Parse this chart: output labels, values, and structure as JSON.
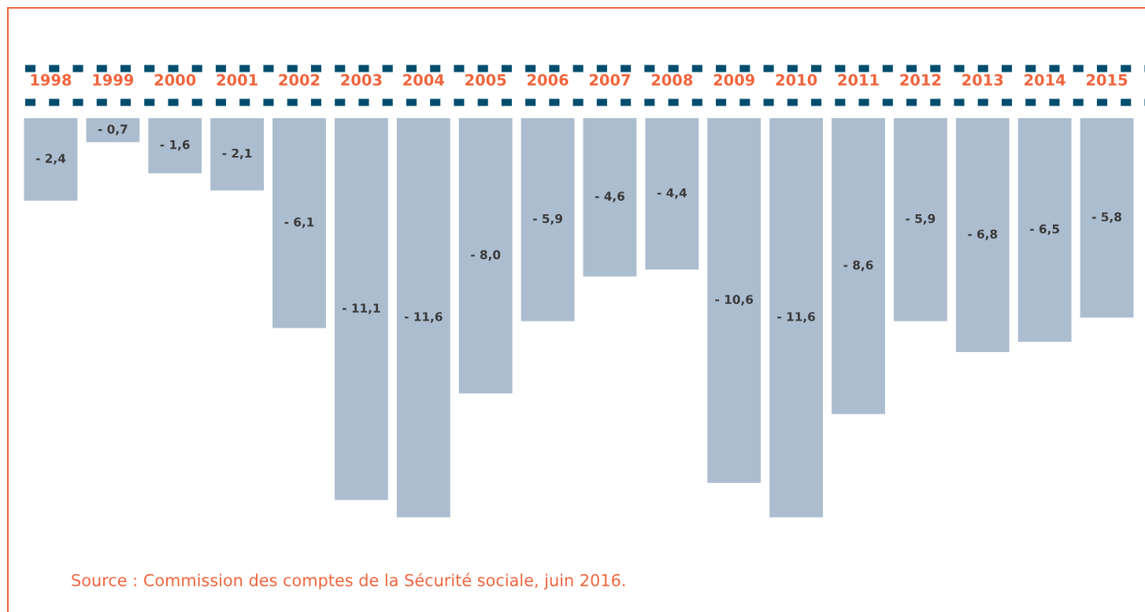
{
  "chart_data": {
    "type": "bar",
    "categories": [
      "1998",
      "1999",
      "2000",
      "2001",
      "2002",
      "2003",
      "2004",
      "2005",
      "2006",
      "2007",
      "2008",
      "2009",
      "2010",
      "2011",
      "2012",
      "2013",
      "2014",
      "2015"
    ],
    "values": [
      -2.4,
      -0.7,
      -1.6,
      -2.1,
      -6.1,
      -11.1,
      -11.6,
      -8.0,
      -5.9,
      -4.6,
      -4.4,
      -10.6,
      -11.6,
      -8.6,
      -5.9,
      -6.8,
      -6.5,
      -5.8
    ],
    "value_labels": [
      "- 2,4",
      "- 0,7",
      "- 1,6",
      "- 2,1",
      "- 6,1",
      "- 11,1",
      "- 11,6",
      "- 8,0",
      "- 5,9",
      "- 4,6",
      "- 4,4",
      "- 10,6",
      "- 11,6",
      "- 8,6",
      "- 5,9",
      "- 6,8",
      "- 6,5",
      "- 5,8"
    ],
    "color": "#acbdd0",
    "tick_labels": "x",
    "annotations": [
      "Source : Commission des comptes de la Sécurité sociale, juin 2016."
    ]
  }
}
